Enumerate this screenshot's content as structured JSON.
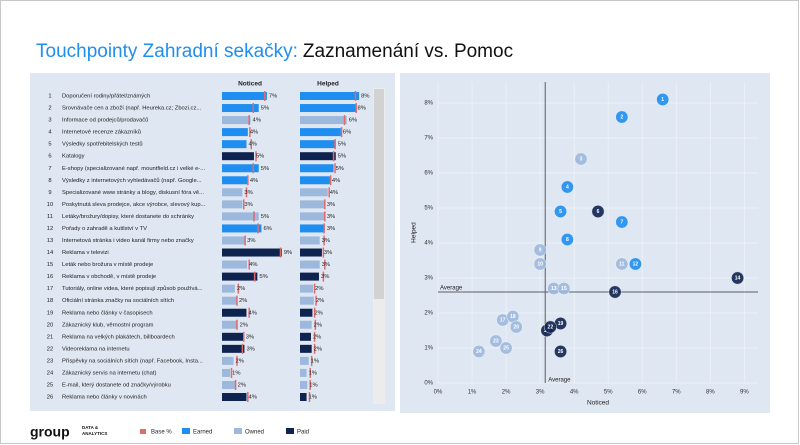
{
  "title_prefix": "Touchpointy Zahradní sekačky:",
  "title_main": "Zaznamenání vs. Pomoc",
  "logo": {
    "name": "group",
    "tagline": [
      "DATA &",
      "ANALYTICS"
    ]
  },
  "chart_data": [
    {
      "type": "bar-table",
      "ids": [
        "1",
        "2",
        "3",
        "4",
        "5",
        "6",
        "7",
        "8",
        "9",
        "10",
        "11",
        "12",
        "13",
        "14",
        "15",
        "16",
        "17",
        "18",
        "19",
        "20",
        "21",
        "22",
        "23",
        "24",
        "25",
        "26"
      ],
      "categories": [
        "Doporučení rodiny/přátel/známých",
        "Srovnávače cen a zboží (např. Heureka.cz; Zbozi.cz...",
        "Informace od prodejců/prodavačů",
        "Internetové recenze zákazníků",
        "Výsledky spotřebitelských testů",
        "Katalogy",
        "E-shopy (specializované např. mountfield.cz i velké e-...",
        "Výsledky z internetových vyhledávačů (např. Google...",
        "Specializované www stránky a blogy, diskusní fóra vě...",
        "Poskytnutá sleva prodejce, akce výrobce, slevový kup...",
        "Letáky/brožury/dopisy, které dostanete do schránky",
        "Pořady o zahradě a kutilství v TV",
        "Internetová stránka i video kanál firmy nebo značky",
        "Reklama v televizi",
        "Leták nebo brožura v místě prodeje",
        "Reklama v obchodě, v místě prodeje",
        "Tutoriály, online videa, které popisují způsob používá...",
        "Oficiální stránka značky na sociálních sítích",
        "Reklama nebo články v časopisech",
        "Zákaznický klub, věrnostní program",
        "Reklama na velkých plakátech, billboardech",
        "Videoreklama na internetu",
        "Příspěvky na sociálních sítích (např. Facebook, Insta...",
        "Zákaznický servis na internetu (chat)",
        "E-mail, který dostanete od značky/výrobku",
        "Reklama nebo články v novinách"
      ],
      "groups": [
        "Earned",
        "Earned",
        "Owned",
        "Earned",
        "Earned",
        "Paid",
        "Earned",
        "Earned",
        "Owned",
        "Owned",
        "Owned",
        "Earned",
        "Owned",
        "Paid",
        "Owned",
        "Paid",
        "Owned",
        "Owned",
        "Paid",
        "Owned",
        "Paid",
        "Paid",
        "Owned",
        "Owned",
        "Owned",
        "Paid"
      ],
      "series": [
        {
          "name": "Noticed",
          "values": [
            6.6,
            5.4,
            4.2,
            3.8,
            3.6,
            4.7,
            5.4,
            3.8,
            3.0,
            3.0,
            5.4,
            5.8,
            3.4,
            8.8,
            3.7,
            5.2,
            1.9,
            2.2,
            3.6,
            2.3,
            3.2,
            3.3,
            1.7,
            1.2,
            2.0,
            3.6
          ],
          "value_labels": [
            "7%",
            "5%",
            "4%",
            "4%",
            "4%",
            "5%",
            "5%",
            "4%",
            "3%",
            "3%",
            "5%",
            "6%",
            "3%",
            "9%",
            "4%",
            "5%",
            "2%",
            "2%",
            "4%",
            "2%",
            "3%",
            "3%",
            "2%",
            "1%",
            "2%",
            "4%"
          ],
          "base": [
            6.3,
            4.6,
            4.0,
            4.1,
            4.3,
            5.0,
            4.6,
            3.8,
            3.6,
            3.2,
            4.7,
            5.3,
            3.4,
            8.6,
            4.0,
            4.8,
            2.4,
            2.2,
            4.0,
            2.2,
            3.2,
            3.0,
            2.2,
            1.4,
            2.0,
            3.8
          ]
        },
        {
          "name": "Helped",
          "values": [
            8.1,
            7.6,
            6.4,
            5.6,
            4.9,
            4.9,
            4.6,
            4.1,
            3.8,
            3.4,
            3.4,
            3.4,
            2.7,
            3.0,
            2.7,
            2.6,
            1.8,
            1.9,
            1.7,
            1.6,
            1.5,
            1.6,
            1.2,
            0.9,
            1.0,
            0.9
          ],
          "value_labels": [
            "8%",
            "8%",
            "6%",
            "6%",
            "5%",
            "5%",
            "5%",
            "4%",
            "4%",
            "3%",
            "3%",
            "3%",
            "3%",
            "3%",
            "3%",
            "3%",
            "2%",
            "2%",
            "2%",
            "2%",
            "2%",
            "2%",
            "1%",
            "1%",
            "1%",
            "1%"
          ],
          "base": [
            7.6,
            7.7,
            6.1,
            5.7,
            4.8,
            4.6,
            4.8,
            4.2,
            4.0,
            3.4,
            3.4,
            3.3,
            3.3,
            3.2,
            3.4,
            3.2,
            2.0,
            2.2,
            2.0,
            2.1,
            2.0,
            2.0,
            1.6,
            1.4,
            1.4,
            1.3
          ]
        }
      ],
      "legend": [
        {
          "name": "Base %",
          "color": "#e06b6b"
        },
        {
          "name": "Earned",
          "color": "#1f8ef1"
        },
        {
          "name": "Owned",
          "color": "#9db8dd"
        },
        {
          "name": "Paid",
          "color": "#0f2350"
        }
      ]
    },
    {
      "type": "scatter",
      "xlabel": "Noticed",
      "ylabel": "Helped",
      "xlim": [
        0,
        9.4
      ],
      "ylim": [
        0,
        8.6
      ],
      "xticks": [
        {
          "value": 0,
          "label": "0%"
        },
        {
          "value": 1,
          "label": "1%"
        },
        {
          "value": 2,
          "label": "2%"
        },
        {
          "value": 3,
          "label": "3%"
        },
        {
          "value": 4,
          "label": "4%"
        },
        {
          "value": 5,
          "label": "5%"
        },
        {
          "value": 6,
          "label": "6%"
        },
        {
          "value": 7,
          "label": "7%"
        },
        {
          "value": 8,
          "label": "8%"
        },
        {
          "value": 9,
          "label": "9%"
        }
      ],
      "yticks": [
        {
          "value": 0,
          "label": "0%"
        },
        {
          "value": 1,
          "label": "1%"
        },
        {
          "value": 2,
          "label": "2%"
        },
        {
          "value": 3,
          "label": "3%"
        },
        {
          "value": 4,
          "label": "4%"
        },
        {
          "value": 5,
          "label": "5%"
        },
        {
          "value": 6,
          "label": "6%"
        },
        {
          "value": 7,
          "label": "7%"
        },
        {
          "value": 8,
          "label": "8%"
        }
      ],
      "grid": true,
      "average_x": {
        "value": 3.15,
        "label": "Average"
      },
      "average_y": {
        "value": 2.6,
        "label": "Average"
      }
    }
  ]
}
